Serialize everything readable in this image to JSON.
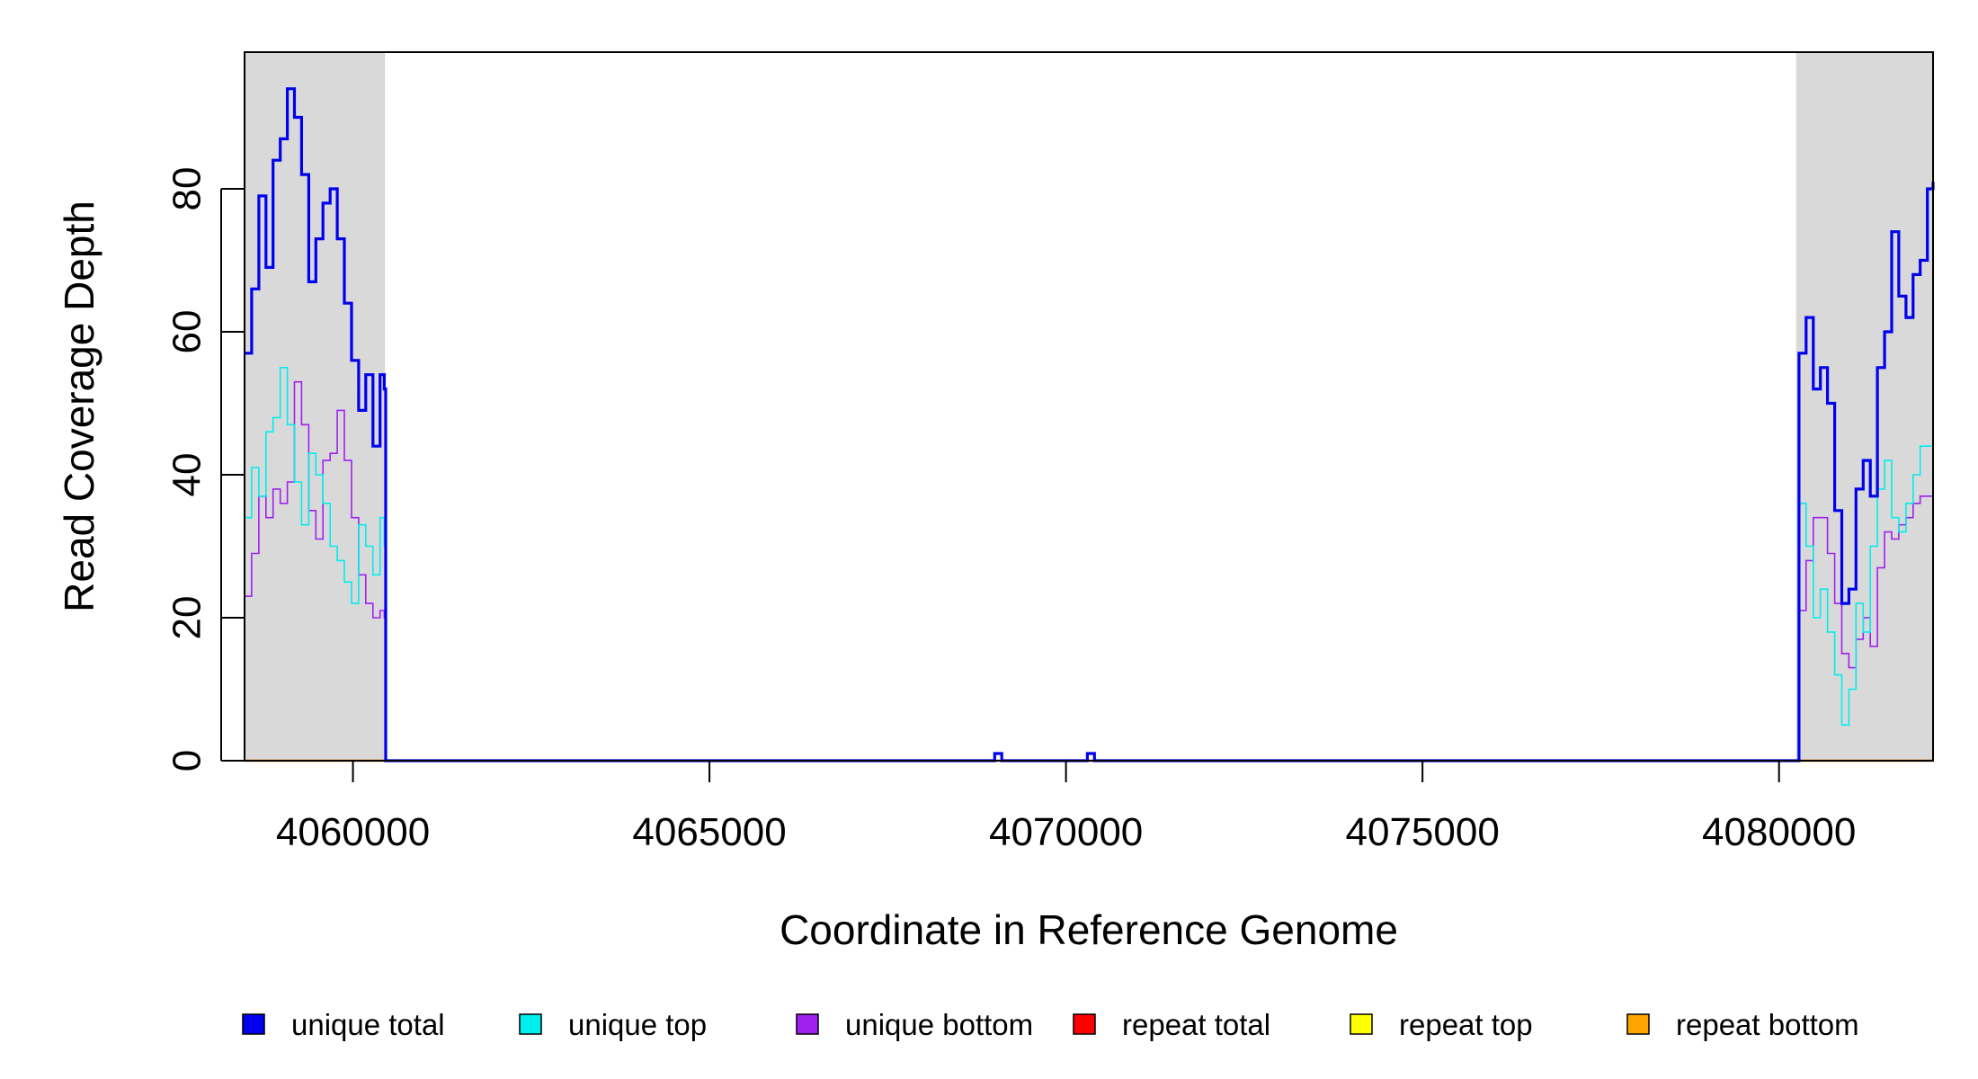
{
  "chart_data": {
    "type": "line",
    "xlabel": "Coordinate in Reference Genome",
    "ylabel": "Read Coverage Depth",
    "xlim": [
      4058480,
      4082160
    ],
    "ylim": [
      0,
      99
    ],
    "x_ticks": [
      4060000,
      4065000,
      4070000,
      4075000,
      4080000
    ],
    "x_tick_labels": [
      "4060000",
      "4065000",
      "4070000",
      "4075000",
      "4080000"
    ],
    "y_ticks": [
      0,
      20,
      40,
      60,
      80
    ],
    "y_tick_labels": [
      "0",
      "20",
      "40",
      "60",
      "80"
    ],
    "grid": false,
    "shaded_regions": [
      {
        "x": [
          4058480,
          4060450
        ],
        "color": "#d9d9d9"
      },
      {
        "x": [
          4080240,
          4082160
        ],
        "color": "#d9d9d9"
      }
    ],
    "legend_position": "bottom",
    "series": [
      {
        "name": "unique total",
        "color": "#0000ee",
        "x": [
          4058480,
          4058580,
          4058680,
          4058780,
          4058880,
          4058980,
          4059080,
          4059180,
          4059280,
          4059380,
          4059480,
          4059580,
          4059680,
          4059780,
          4059880,
          4059980,
          4060080,
          4060180,
          4060280,
          4060380,
          4060440,
          4060460,
          4069000,
          4069100,
          4070300,
          4070400,
          4080240,
          4080280,
          4080380,
          4080480,
          4080580,
          4080680,
          4080780,
          4080880,
          4080980,
          4081080,
          4081180,
          4081280,
          4081380,
          4081480,
          4081580,
          4081680,
          4081780,
          4081880,
          4081980,
          4082080,
          4082160
        ],
        "values": [
          57,
          66,
          79,
          69,
          84,
          87,
          94,
          90,
          82,
          67,
          73,
          78,
          80,
          73,
          64,
          56,
          49,
          54,
          44,
          54,
          52,
          0,
          1,
          0,
          1,
          0,
          0,
          57,
          62,
          52,
          55,
          50,
          35,
          22,
          24,
          38,
          42,
          37,
          55,
          60,
          74,
          65,
          62,
          68,
          70,
          80,
          81
        ]
      },
      {
        "name": "unique top",
        "color": "#00eeee",
        "x": [
          4058480,
          4058580,
          4058680,
          4058780,
          4058880,
          4058980,
          4059080,
          4059180,
          4059280,
          4059380,
          4059480,
          4059580,
          4059680,
          4059780,
          4059880,
          4059980,
          4060080,
          4060180,
          4060280,
          4060380,
          4060440,
          4060460,
          4069000,
          4069100,
          4070300,
          4070400,
          4080240,
          4080280,
          4080380,
          4080480,
          4080580,
          4080680,
          4080780,
          4080880,
          4080980,
          4081080,
          4081180,
          4081280,
          4081380,
          4081480,
          4081580,
          4081680,
          4081780,
          4081880,
          4081980,
          4082080,
          4082160
        ],
        "values": [
          34,
          41,
          37,
          46,
          48,
          55,
          47,
          39,
          33,
          43,
          40,
          36,
          30,
          28,
          25,
          22,
          33,
          30,
          26,
          34,
          30,
          0,
          0,
          0,
          1,
          0,
          0,
          36,
          30,
          20,
          24,
          18,
          12,
          5,
          10,
          22,
          18,
          30,
          38,
          42,
          34,
          32,
          36,
          40,
          44,
          44,
          44
        ]
      },
      {
        "name": "unique bottom",
        "color": "#a020f0",
        "x": [
          4058480,
          4058580,
          4058680,
          4058780,
          4058880,
          4058980,
          4059080,
          4059180,
          4059280,
          4059380,
          4059480,
          4059580,
          4059680,
          4059780,
          4059880,
          4059980,
          4060080,
          4060180,
          4060280,
          4060380,
          4060440,
          4060460,
          4069000,
          4069100,
          4070300,
          4070400,
          4080240,
          4080280,
          4080380,
          4080480,
          4080580,
          4080680,
          4080780,
          4080880,
          4080980,
          4081080,
          4081180,
          4081280,
          4081380,
          4081480,
          4081580,
          4081680,
          4081780,
          4081880,
          4081980,
          4082080,
          4082160
        ],
        "values": [
          23,
          29,
          37,
          34,
          38,
          36,
          39,
          53,
          47,
          35,
          31,
          42,
          43,
          49,
          42,
          34,
          26,
          22,
          20,
          21,
          20,
          0,
          1,
          0,
          0,
          0,
          0,
          21,
          28,
          34,
          34,
          29,
          22,
          15,
          13,
          17,
          20,
          16,
          27,
          32,
          31,
          33,
          34,
          36,
          37,
          37,
          37
        ]
      },
      {
        "name": "repeat total",
        "color": "#ff0000",
        "x": [
          4058480,
          4082160
        ],
        "values": [
          0,
          0
        ]
      },
      {
        "name": "repeat top",
        "color": "#ffff00",
        "x": [
          4058480,
          4082160
        ],
        "values": [
          0,
          0
        ]
      },
      {
        "name": "repeat bottom",
        "color": "#ffa500",
        "x": [
          4058480,
          4082160
        ],
        "values": [
          0,
          0
        ]
      }
    ]
  }
}
